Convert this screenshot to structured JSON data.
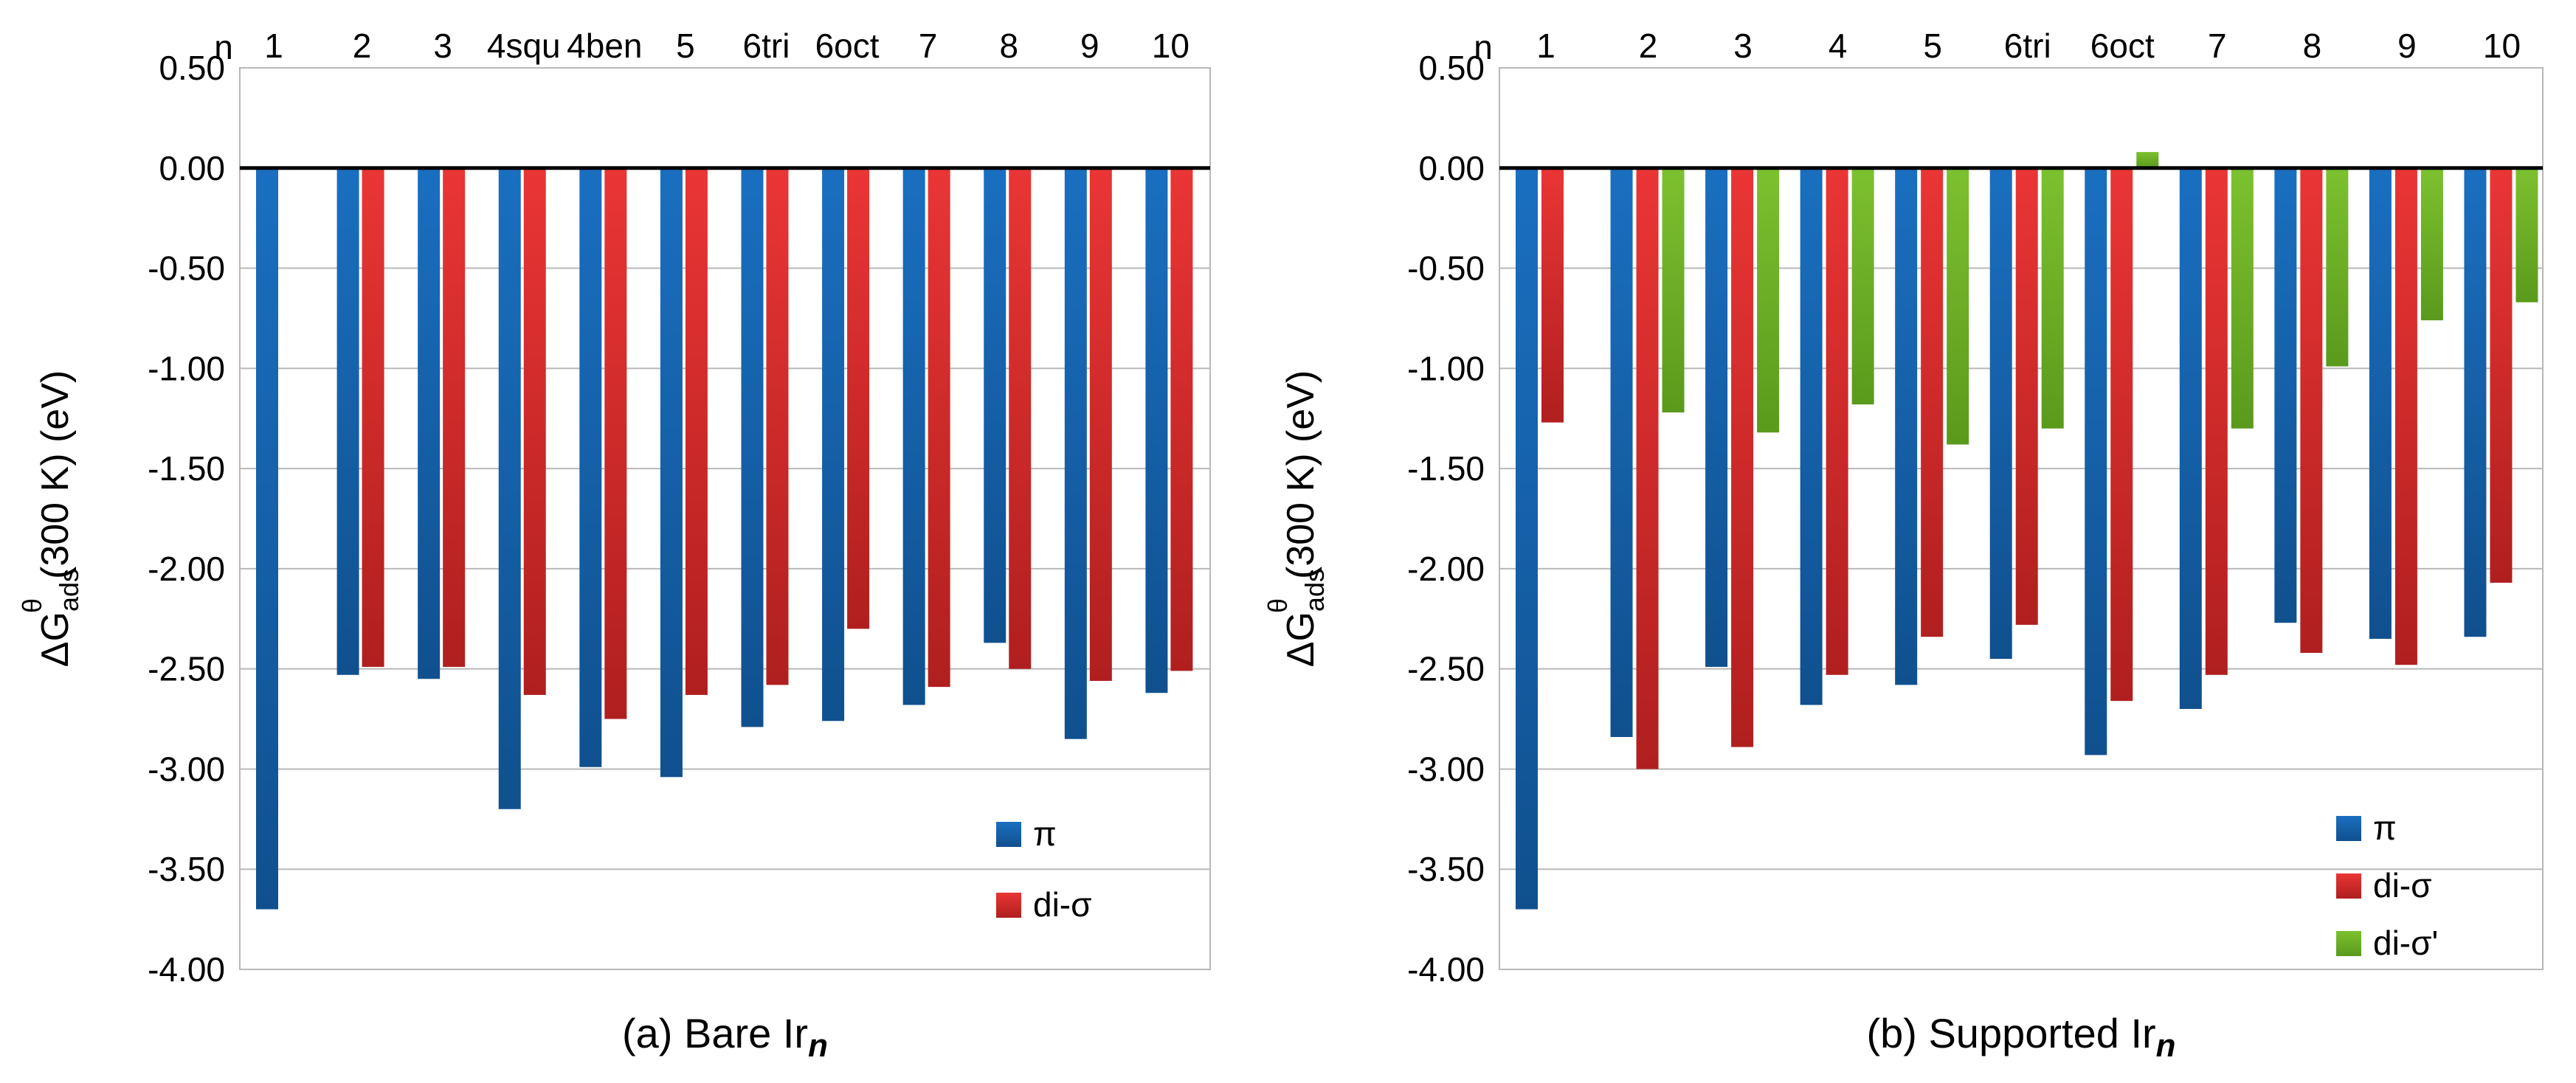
{
  "colors": {
    "pi": "#1a6fc0",
    "pi_dark": "#10508e",
    "di_sigma": "#ea3535",
    "di_sigma_dark": "#b01f1f",
    "di_sigma_prime": "#7cc12f",
    "di_sigma_prime_dark": "#5a9a1c",
    "grid": "#b8b8b8",
    "zero_line": "#000000"
  },
  "chart_data": [
    {
      "type": "bar",
      "title": "",
      "caption_prefix": "(a) Bare Ir",
      "caption_italic": "n",
      "n_label": "n",
      "xlabel": "",
      "ylabel_prefix": "ΔG",
      "ylabel_sub": "ads",
      "ylabel_sup": "θ",
      "ylabel_suffix": "(300 K) (eV)",
      "ylim": [
        -4.0,
        0.5
      ],
      "yticks": [
        "0.50",
        "0.00",
        "-0.50",
        "-1.00",
        "-1.50",
        "-2.00",
        "-2.50",
        "-3.00",
        "-3.50",
        "-4.00"
      ],
      "ytick_values": [
        0.5,
        0.0,
        -0.5,
        -1.0,
        -1.5,
        -2.0,
        -2.5,
        -3.0,
        -3.5,
        -4.0
      ],
      "categories": [
        "1",
        "2",
        "3",
        "4squ",
        "4ben",
        "5",
        "6tri",
        "6oct",
        "7",
        "8",
        "9",
        "10"
      ],
      "series": [
        {
          "name": "π",
          "color_key": "pi",
          "values": [
            -3.7,
            -2.53,
            -2.55,
            -3.2,
            -2.99,
            -3.04,
            -2.79,
            -2.76,
            -2.68,
            -2.37,
            -2.85,
            -2.62
          ]
        },
        {
          "name": "di-σ",
          "color_key": "di_sigma",
          "values": [
            0.0,
            -2.49,
            -2.49,
            -2.63,
            -2.75,
            -2.63,
            -2.58,
            -2.3,
            -2.59,
            -2.5,
            -2.56,
            -2.51
          ]
        }
      ],
      "legend_position": "bottom-right",
      "grid": true
    },
    {
      "type": "bar",
      "title": "",
      "caption_prefix": "(b) Supported Ir",
      "caption_italic": "n",
      "n_label": "n",
      "xlabel": "",
      "ylabel_prefix": "ΔG",
      "ylabel_sub": "ads",
      "ylabel_sup": "θ",
      "ylabel_suffix": "(300 K) (eV)",
      "ylim": [
        -4.0,
        0.5
      ],
      "yticks": [
        "0.50",
        "0.00",
        "-0.50",
        "-1.00",
        "-1.50",
        "-2.00",
        "-2.50",
        "-3.00",
        "-3.50",
        "-4.00"
      ],
      "ytick_values": [
        0.5,
        0.0,
        -0.5,
        -1.0,
        -1.5,
        -2.0,
        -2.5,
        -3.0,
        -3.5,
        -4.0
      ],
      "categories": [
        "1",
        "2",
        "3",
        "4",
        "5",
        "6tri",
        "6oct",
        "7",
        "8",
        "9",
        "10"
      ],
      "series": [
        {
          "name": "π",
          "color_key": "pi",
          "values": [
            -3.7,
            -2.84,
            -2.49,
            -2.68,
            -2.58,
            -2.45,
            -2.93,
            -2.7,
            -2.27,
            -2.35,
            -2.34
          ]
        },
        {
          "name": "di-σ",
          "color_key": "di_sigma",
          "values": [
            -1.27,
            -3.0,
            -2.89,
            -2.53,
            -2.34,
            -2.28,
            -2.66,
            -2.53,
            -2.42,
            -2.48,
            -2.07
          ]
        },
        {
          "name": "di-σ'",
          "color_key": "di_sigma_prime",
          "values": [
            null,
            -1.22,
            -1.32,
            -1.18,
            -1.38,
            -1.3,
            0.08,
            -1.3,
            -0.99,
            -0.76,
            -0.67
          ]
        }
      ],
      "legend_position": "bottom-right",
      "grid": true
    }
  ]
}
